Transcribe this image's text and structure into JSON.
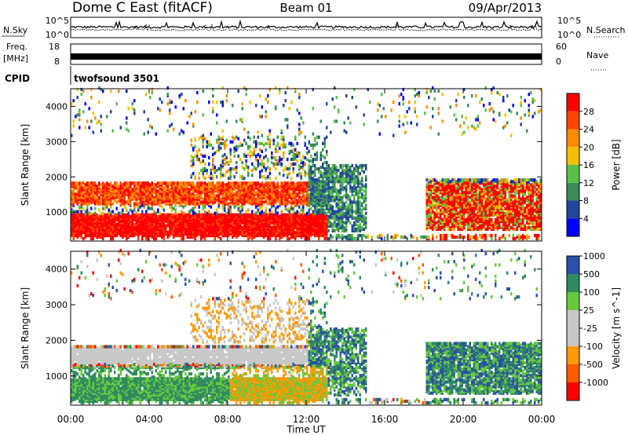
{
  "header": {
    "station": "Dome C East (fitACF)",
    "beam": "Beam 01",
    "date": "09/Apr/2013"
  },
  "strips": {
    "nsky": {
      "label": "N.Sky",
      "yticks": [
        "10^5",
        "10^0"
      ]
    },
    "nsearch": {
      "label": "N.Search",
      "yticks": [
        "10^5",
        "10^0"
      ]
    },
    "freq": {
      "label": "Freq.",
      "unit": "[MHz]",
      "yticks": [
        "18",
        "8"
      ]
    },
    "nave": {
      "label": "Nave",
      "yticks": [
        "60",
        "0"
      ]
    },
    "cpid": {
      "label": "CPID",
      "value": "twofsound 3501"
    }
  },
  "colors": {
    "power": [
      "#0000ff",
      "#22479a",
      "#3b8a5a",
      "#5ac04a",
      "#f2c200",
      "#ff8c00",
      "#ff4400",
      "#ff0000"
    ],
    "velocity": [
      "#ff0000",
      "#ff5a00",
      "#ff9a00",
      "#c8c8c8",
      "#c8c8c8",
      "#68c840",
      "#2f8a60",
      "#2a50a8"
    ]
  },
  "chart_data": [
    {
      "type": "heatmap",
      "panel": "power",
      "ylabel": "Slant Range [km]",
      "ylim": [
        180,
        4500
      ],
      "yticks": [
        "1000",
        "2000",
        "3000",
        "4000"
      ],
      "xlim": [
        0,
        24
      ],
      "xticks": [
        "00:00",
        "04:00",
        "08:00",
        "12:00",
        "16:00",
        "20:00",
        "00:00"
      ],
      "colorbar": {
        "label": "Power [dB]",
        "ticks": [
          "4",
          "8",
          "12",
          "16",
          "20",
          "24",
          "28"
        ],
        "levels": [
          4,
          8,
          12,
          16,
          20,
          24,
          28
        ]
      }
    },
    {
      "type": "heatmap",
      "panel": "velocity",
      "ylabel": "Slant Range [km]",
      "xlabel": "Time UT",
      "ylim": [
        180,
        4500
      ],
      "yticks": [
        "1000",
        "2000",
        "3000",
        "4000"
      ],
      "xlim": [
        0,
        24
      ],
      "xticks": [
        "00:00",
        "04:00",
        "08:00",
        "12:00",
        "16:00",
        "20:00",
        "00:00"
      ],
      "colorbar": {
        "label": "Velocity [m s^-1]",
        "ticks": [
          "-1000",
          "-500",
          "-100",
          "-25",
          "25",
          "100",
          "500",
          "1000"
        ]
      }
    }
  ]
}
